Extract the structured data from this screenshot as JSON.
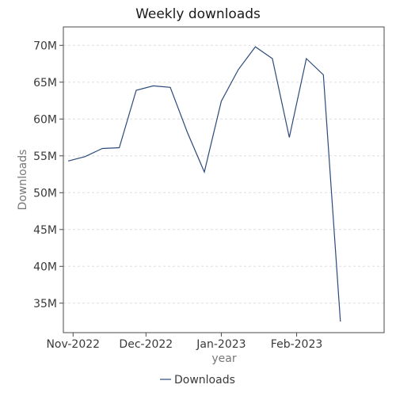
{
  "chart_data": {
    "type": "line",
    "title": "Weekly downloads",
    "xlabel": "year",
    "ylabel": "Downloads",
    "ylim": [
      31000000,
      72500000
    ],
    "xlim": [
      "2022-10-28",
      "2023-03-09"
    ],
    "y_ticks": [
      {
        "value": 35000000,
        "label": "35M"
      },
      {
        "value": 40000000,
        "label": "40M"
      },
      {
        "value": 45000000,
        "label": "45M"
      },
      {
        "value": 50000000,
        "label": "50M"
      },
      {
        "value": 55000000,
        "label": "55M"
      },
      {
        "value": 60000000,
        "label": "60M"
      },
      {
        "value": 65000000,
        "label": "65M"
      },
      {
        "value": 70000000,
        "label": "70M"
      }
    ],
    "x_ticks": [
      {
        "value": "2022-11-01",
        "label": "Nov-2022"
      },
      {
        "value": "2022-12-01",
        "label": "Dec-2022"
      },
      {
        "value": "2023-01-01",
        "label": "Jan-2023"
      },
      {
        "value": "2023-02-01",
        "label": "Feb-2023"
      }
    ],
    "grid": "horizontal",
    "legend_position": "bottom",
    "series": [
      {
        "name": "Downloads",
        "color": "#2c4a7c",
        "x": [
          "2022-10-30",
          "2022-11-06",
          "2022-11-13",
          "2022-11-20",
          "2022-11-27",
          "2022-12-04",
          "2022-12-11",
          "2022-12-18",
          "2022-12-25",
          "2023-01-01",
          "2023-01-08",
          "2023-01-15",
          "2023-01-22",
          "2023-01-29",
          "2023-02-05",
          "2023-02-12",
          "2023-02-19",
          "2023-02-26"
        ],
        "values": [
          54300000,
          54900000,
          56000000,
          56100000,
          63900000,
          64500000,
          64300000,
          58200000,
          52800000,
          62400000,
          66700000,
          69800000,
          68200000,
          57500000,
          68200000,
          66000000,
          32500000,
          null
        ]
      }
    ]
  }
}
